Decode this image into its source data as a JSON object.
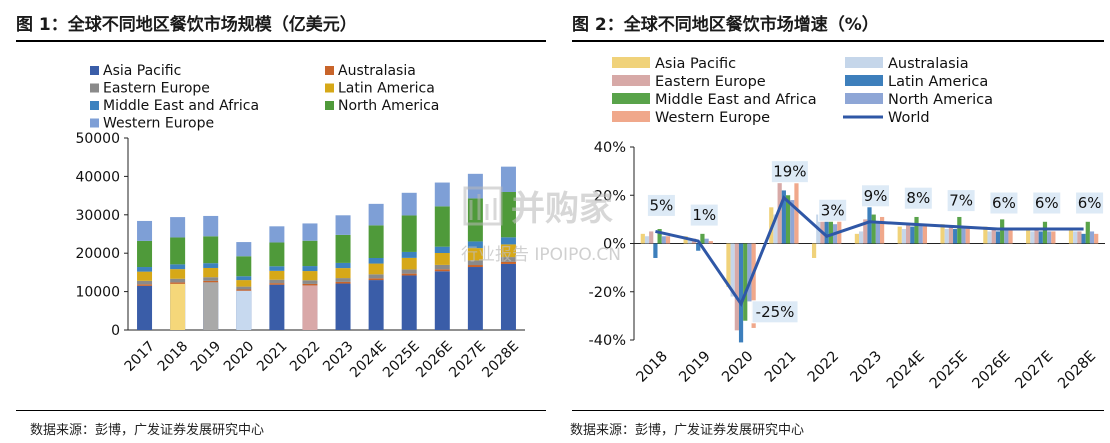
{
  "left": {
    "title": "图 1：全球不同地区餐饮市场规模（亿美元）",
    "source": "数据来源：彭博，广发证券发展研究中心"
  },
  "right": {
    "title": "图 2：全球不同地区餐饮市场增速（%）",
    "source": "数据来源：彭博，广发证券发展研究中心"
  },
  "watermark": {
    "text": "行业报告 IPOIPO.CN",
    "logo_text": "并购家"
  },
  "chart_data": [
    {
      "type": "bar",
      "stacked": true,
      "title": "",
      "categories": [
        "2017",
        "2018",
        "2019",
        "2020",
        "2021",
        "2022",
        "2023",
        "2024E",
        "2025E",
        "2026E",
        "2027E",
        "2028E"
      ],
      "ylim": [
        0,
        50000
      ],
      "yticks": [
        "0",
        "10000",
        "20000",
        "30000",
        "40000",
        "50000"
      ],
      "grid": false,
      "legend_position": "top",
      "series": [
        {
          "name": "Asia Pacific",
          "color": "#3a5da8",
          "values": [
            11500,
            12000,
            12400,
            10200,
            11800,
            11600,
            12100,
            13000,
            14200,
            15300,
            16400,
            17200
          ]
        },
        {
          "name": "Australasia",
          "color": "#c8642a",
          "values": [
            400,
            400,
            400,
            350,
            400,
            400,
            420,
            450,
            480,
            500,
            520,
            540
          ]
        },
        {
          "name": "Eastern Europe",
          "color": "#8a8a8a",
          "values": [
            900,
            950,
            950,
            750,
            900,
            950,
            1000,
            1050,
            1100,
            1150,
            1200,
            1250
          ]
        },
        {
          "name": "Latin America",
          "color": "#d6a818",
          "values": [
            2400,
            2500,
            2400,
            1700,
            2300,
            2400,
            2600,
            2800,
            3000,
            3100,
            3200,
            3300
          ]
        },
        {
          "name": "Middle East and Africa",
          "color": "#3d82bf",
          "values": [
            1200,
            1250,
            1250,
            1000,
            1200,
            1300,
            1350,
            1450,
            1550,
            1650,
            1750,
            1850
          ]
        },
        {
          "name": "North America",
          "color": "#4f9a3a",
          "values": [
            6800,
            7000,
            7000,
            5200,
            6200,
            6600,
            7300,
            8500,
            9500,
            10500,
            11200,
            11800
          ]
        },
        {
          "name": "Western Europe",
          "color": "#7e9fd6",
          "values": [
            5200,
            5300,
            5300,
            3700,
            4200,
            4500,
            5100,
            5600,
            5900,
            6200,
            6400,
            6600
          ]
        }
      ],
      "highlight_bars": [
        {
          "category": "2018",
          "color": "#f5d77a"
        },
        {
          "category": "2019",
          "color": "#a9a9a9"
        },
        {
          "category": "2020",
          "color": "#c7d9ef"
        },
        {
          "category": "2022",
          "color": "#d9a8a8"
        }
      ]
    },
    {
      "type": "bar",
      "title": "",
      "categories": [
        "2018",
        "2019",
        "2020",
        "2021",
        "2022",
        "2023",
        "2024E",
        "2025E",
        "2026E",
        "2027E",
        "2028E"
      ],
      "ylim": [
        -40,
        40
      ],
      "yticks": [
        "-40%",
        "-20%",
        "0%",
        "20%",
        "40%"
      ],
      "grid": false,
      "legend_position": "top",
      "series": [
        {
          "name": "Asia Pacific",
          "color": "#f0d27a",
          "values": [
            4,
            3,
            -18,
            15,
            -6,
            4,
            7,
            8,
            7,
            6,
            6
          ]
        },
        {
          "name": "Australasia",
          "color": "#c5d6ea",
          "values": [
            3,
            2,
            -22,
            12,
            12,
            5,
            6,
            6,
            5,
            5,
            5
          ]
        },
        {
          "name": "Eastern Europe",
          "color": "#d7a9a7",
          "values": [
            5,
            2,
            -36,
            28,
            18,
            10,
            8,
            7,
            6,
            6,
            5
          ]
        },
        {
          "name": "Latin America",
          "color": "#3d7fbc",
          "values": [
            -6,
            -3,
            -41,
            22,
            15,
            18,
            7,
            6,
            5,
            5,
            4
          ]
        },
        {
          "name": "Middle East and Africa",
          "color": "#59a34a",
          "values": [
            6,
            4,
            -32,
            20,
            14,
            12,
            11,
            11,
            10,
            9,
            9
          ]
        },
        {
          "name": "North America",
          "color": "#8ea6d6",
          "values": [
            3,
            2,
            -24,
            18,
            8,
            9,
            8,
            7,
            6,
            5,
            5
          ]
        },
        {
          "name": "Western Europe",
          "color": "#f0a88b",
          "values": [
            3,
            1,
            -35,
            25,
            13,
            11,
            8,
            7,
            6,
            5,
            4
          ]
        },
        {
          "name": "World",
          "color": "#2f57a6",
          "type": "line",
          "values": [
            5,
            1,
            -25,
            19,
            3,
            9,
            8,
            7,
            6,
            6,
            6
          ]
        }
      ],
      "data_labels": [
        "5%",
        "1%",
        "-25%",
        "19%",
        "3%",
        "9%",
        "8%",
        "7%",
        "6%",
        "6%",
        "6%"
      ]
    }
  ]
}
